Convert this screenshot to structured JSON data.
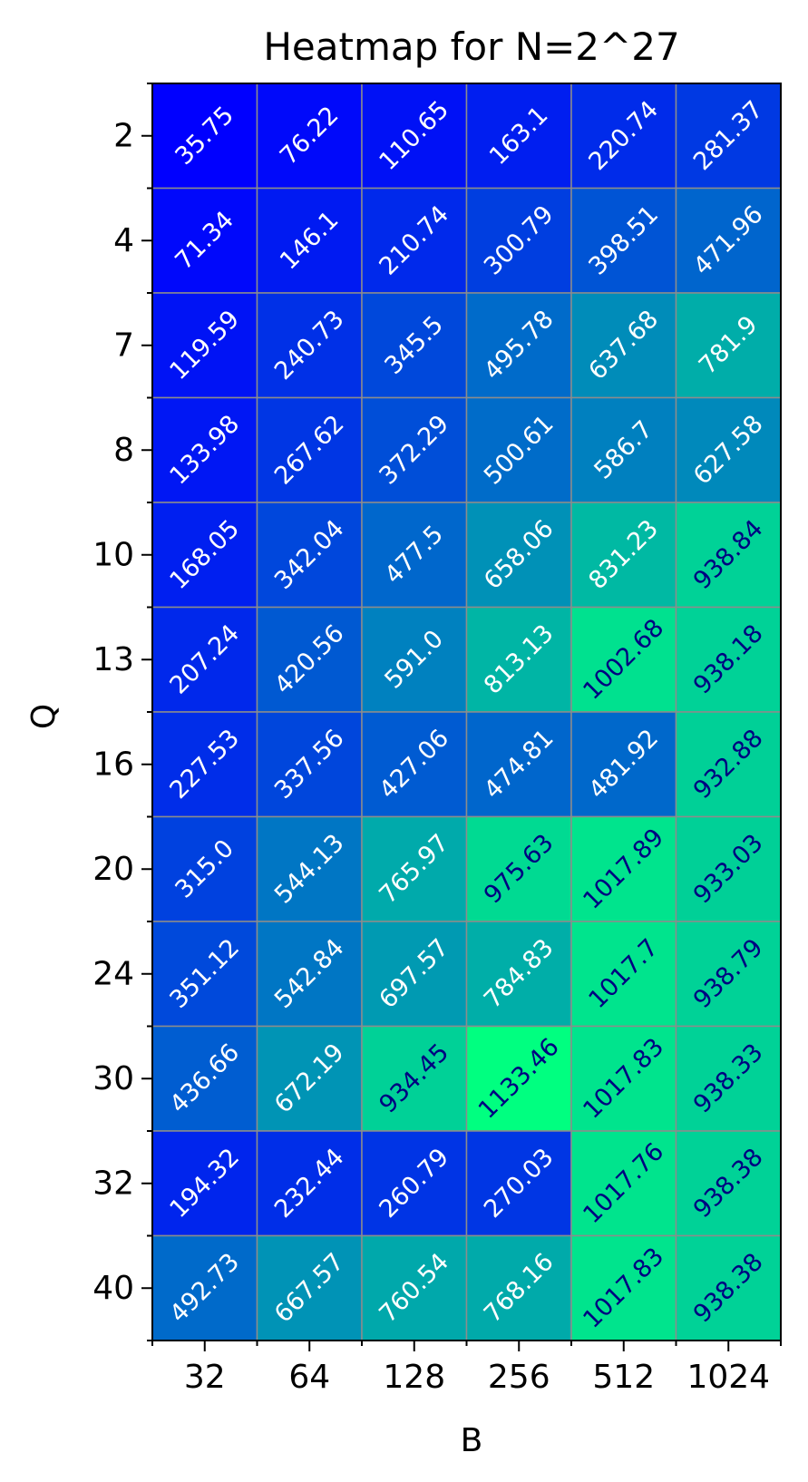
{
  "chart_data": {
    "type": "heatmap",
    "title": "Heatmap for N=2^27",
    "xlabel": "B",
    "ylabel": "Q",
    "x_categories": [
      "32",
      "64",
      "128",
      "256",
      "512",
      "1024"
    ],
    "y_categories": [
      "2",
      "4",
      "7",
      "8",
      "10",
      "13",
      "16",
      "20",
      "24",
      "30",
      "32",
      "40"
    ],
    "values": [
      [
        35.75,
        76.22,
        110.65,
        163.1,
        220.74,
        281.37
      ],
      [
        71.34,
        146.1,
        210.74,
        300.79,
        398.51,
        471.96
      ],
      [
        119.59,
        240.73,
        345.5,
        495.78,
        637.68,
        781.9
      ],
      [
        133.98,
        267.62,
        372.29,
        500.61,
        586.7,
        627.58
      ],
      [
        168.05,
        342.04,
        477.5,
        658.06,
        831.23,
        938.84
      ],
      [
        207.24,
        420.56,
        591.0,
        813.13,
        1002.68,
        938.18
      ],
      [
        227.53,
        337.56,
        427.06,
        474.81,
        481.92,
        932.88
      ],
      [
        315.0,
        544.13,
        765.97,
        975.63,
        1017.89,
        933.03
      ],
      [
        351.12,
        542.84,
        697.57,
        784.83,
        1017.7,
        938.79
      ],
      [
        436.66,
        672.19,
        934.45,
        1133.46,
        1017.83,
        938.33
      ],
      [
        194.32,
        232.44,
        260.79,
        270.03,
        1017.76,
        938.38
      ],
      [
        492.73,
        667.57,
        760.54,
        768.16,
        1017.83,
        938.38
      ]
    ],
    "value_labels": [
      [
        "35.75",
        "76.22",
        "110.65",
        "163.1",
        "220.74",
        "281.37"
      ],
      [
        "71.34",
        "146.1",
        "210.74",
        "300.79",
        "398.51",
        "471.96"
      ],
      [
        "119.59",
        "240.73",
        "345.5",
        "495.78",
        "637.68",
        "781.9"
      ],
      [
        "133.98",
        "267.62",
        "372.29",
        "500.61",
        "586.7",
        "627.58"
      ],
      [
        "168.05",
        "342.04",
        "477.5",
        "658.06",
        "831.23",
        "938.84"
      ],
      [
        "207.24",
        "420.56",
        "591.0",
        "813.13",
        "1002.68",
        "938.18"
      ],
      [
        "227.53",
        "337.56",
        "427.06",
        "474.81",
        "481.92",
        "932.88"
      ],
      [
        "315.0",
        "544.13",
        "765.97",
        "975.63",
        "1017.89",
        "933.03"
      ],
      [
        "351.12",
        "542.84",
        "697.57",
        "784.83",
        "1017.7",
        "938.79"
      ],
      [
        "436.66",
        "672.19",
        "934.45",
        "1133.46",
        "1017.83",
        "938.33"
      ],
      [
        "194.32",
        "232.44",
        "260.79",
        "270.03",
        "1017.76",
        "938.38"
      ],
      [
        "492.73",
        "667.57",
        "760.54",
        "768.16",
        "1017.83",
        "938.38"
      ]
    ],
    "colormap": "winter",
    "color_min": "#0000ff",
    "color_max": "#00ff80",
    "label_color_light": "#ffffff",
    "label_color_dark": "#000080",
    "grid_line_color": "#8c8c8c"
  }
}
